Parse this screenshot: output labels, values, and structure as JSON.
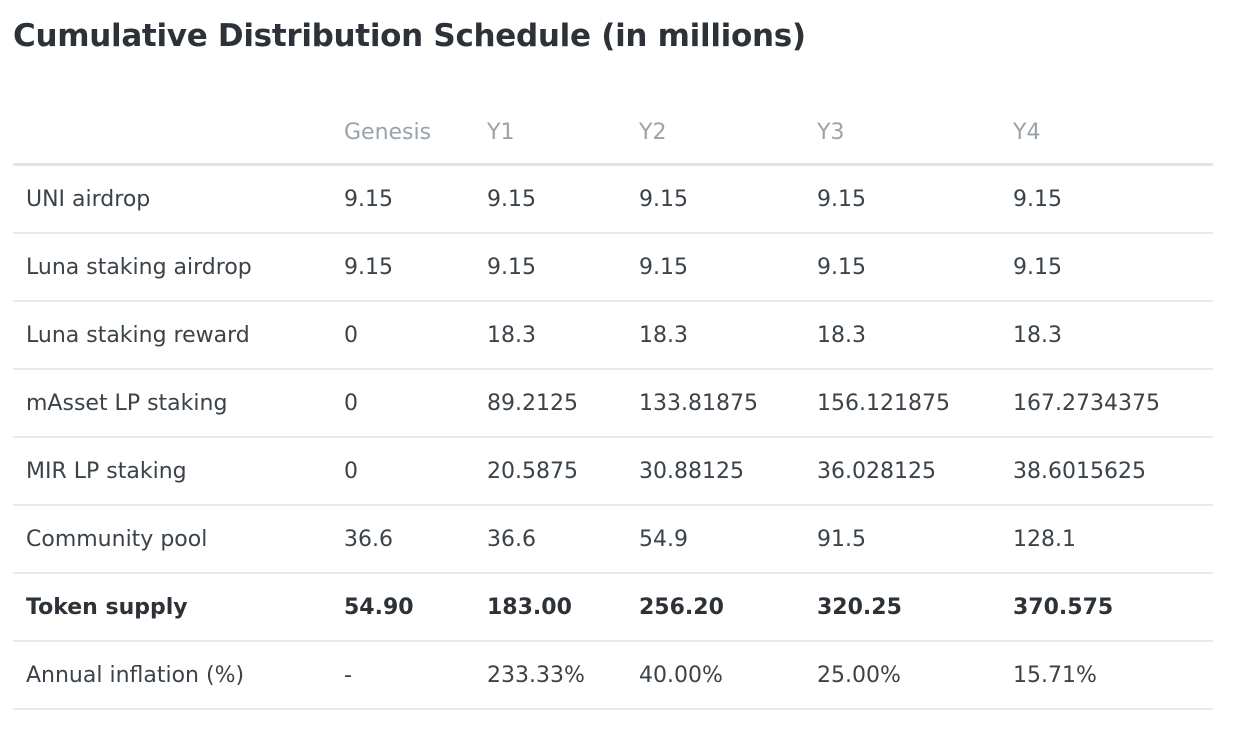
{
  "title": "Cumulative Distribution Schedule (in millions)",
  "table": {
    "columns": [
      "",
      "Genesis",
      "Y1",
      "Y2",
      "Y3",
      "Y4"
    ],
    "rows": [
      {
        "cells": [
          "UNI airdrop",
          "9.15",
          "9.15",
          "9.15",
          "9.15",
          "9.15"
        ]
      },
      {
        "cells": [
          "Luna staking airdrop",
          "9.15",
          "9.15",
          "9.15",
          "9.15",
          "9.15"
        ]
      },
      {
        "cells": [
          "Luna staking reward",
          "0",
          "18.3",
          "18.3",
          "18.3",
          "18.3"
        ]
      },
      {
        "cells": [
          "mAsset LP staking",
          "0",
          "89.2125",
          "133.81875",
          "156.121875",
          "167.2734375"
        ]
      },
      {
        "cells": [
          "MIR LP staking",
          "0",
          "20.5875",
          "30.88125",
          "36.028125",
          "38.6015625"
        ]
      },
      {
        "cells": [
          "Community pool",
          "36.6",
          "36.6",
          "54.9",
          "91.5",
          "128.1"
        ]
      },
      {
        "cells": [
          "Token supply",
          "54.90",
          "183.00",
          "256.20",
          "320.25",
          "370.575"
        ],
        "bold": true
      },
      {
        "cells": [
          "Annual inflation (%)",
          "-",
          "233.33%",
          "40.00%",
          "25.00%",
          "15.71%"
        ]
      }
    ]
  }
}
